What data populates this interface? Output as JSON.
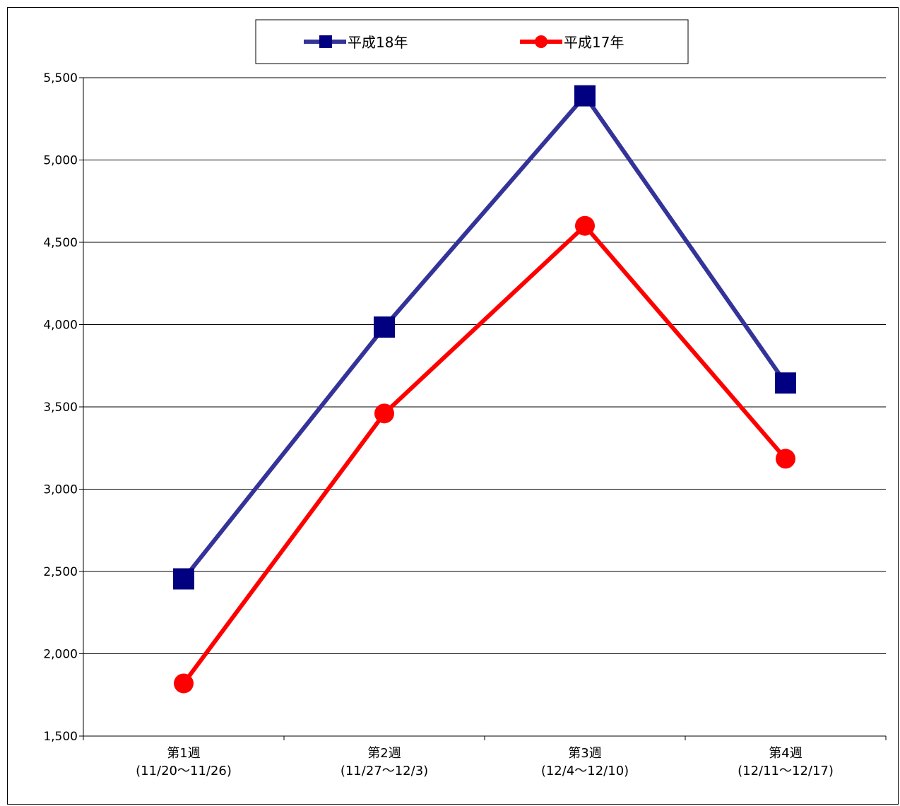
{
  "chart_data": {
    "type": "line",
    "categories": [
      [
        "第1週",
        "(11/20～11/26)"
      ],
      [
        "第2週",
        "(11/27～12/3)"
      ],
      [
        "第3週",
        "(12/4～12/10)"
      ],
      [
        "第4週",
        "(12/11～12/17)"
      ]
    ],
    "series": [
      {
        "name": "平成18年",
        "values": [
          2455,
          3985,
          5390,
          3645
        ],
        "color": "#333399",
        "marker_color": "#000080",
        "marker": "square"
      },
      {
        "name": "平成17年",
        "values": [
          1820,
          3460,
          4600,
          3185
        ],
        "color": "#ff0000",
        "marker_color": "#ff0000",
        "marker": "circle"
      }
    ],
    "ylim": [
      1500,
      5500
    ],
    "yticks": [
      1500,
      2000,
      2500,
      3000,
      3500,
      4000,
      4500,
      5000,
      5500
    ],
    "ytick_labels": [
      "1,500",
      "2,000",
      "2,500",
      "3,000",
      "3,500",
      "4,000",
      "4,500",
      "5,000",
      "5,500"
    ],
    "grid": true,
    "legend_position": "top-center",
    "title": "",
    "xlabel": "",
    "ylabel": ""
  }
}
